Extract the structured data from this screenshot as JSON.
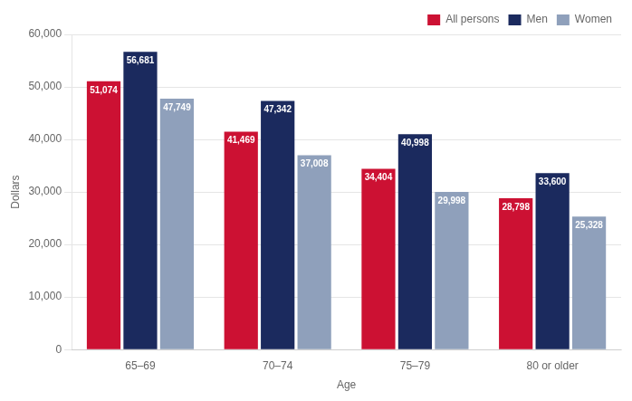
{
  "chart_data": {
    "type": "bar",
    "xlabel": "Age",
    "ylabel": "Dollars",
    "categories": [
      "65–69",
      "70–74",
      "75–79",
      "80 or older"
    ],
    "series": [
      {
        "name": "All persons",
        "color": "#CC1133",
        "values": [
          51074,
          41469,
          34404,
          28798
        ],
        "value_labels": [
          "51,074",
          "41,469",
          "34,404",
          "28,798"
        ]
      },
      {
        "name": "Men",
        "color": "#1B2A5E",
        "values": [
          56681,
          47342,
          40998,
          33600
        ],
        "value_labels": [
          "56,681",
          "47,342",
          "40,998",
          "33,600"
        ]
      },
      {
        "name": "Women",
        "color": "#8FA0BB",
        "values": [
          47749,
          37008,
          29998,
          25328
        ],
        "value_labels": [
          "47,749",
          "37,008",
          "29,998",
          "25,328"
        ]
      }
    ],
    "ylim": [
      0,
      60000
    ],
    "yticks": [
      0,
      {
        "value": 10000,
        "label": "10,000"
      },
      {
        "value": 20000,
        "label": "20,000"
      },
      {
        "value": 30000,
        "label": "30,000"
      },
      {
        "value": 40000,
        "label": "40,000"
      },
      {
        "value": 50000,
        "label": "50,000"
      },
      {
        "value": 60000,
        "label": "60,000"
      }
    ],
    "grid": true,
    "legend": "top-right",
    "data_labels": true
  }
}
